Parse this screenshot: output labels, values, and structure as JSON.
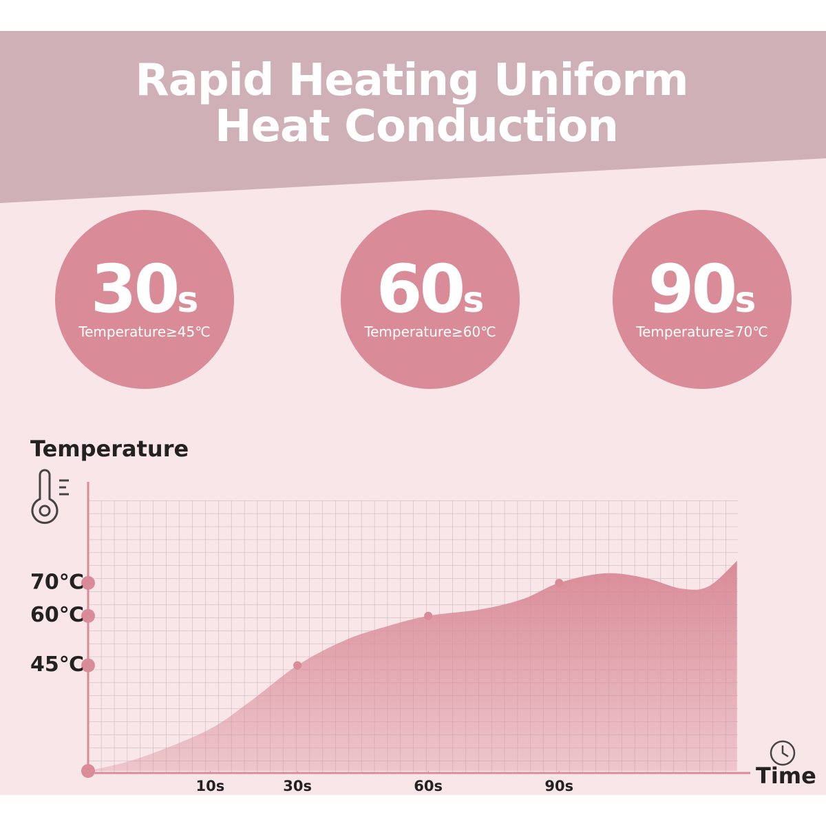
{
  "header": {
    "title": [
      "Rapid Heating Uniform",
      "Heat Conduction"
    ]
  },
  "badges": [
    {
      "number": "30",
      "unit": "s",
      "caption": "Temperature≥45℃"
    },
    {
      "number": "60",
      "unit": "s",
      "caption": "Temperature≥60℃"
    },
    {
      "number": "90",
      "unit": "s",
      "caption": "Temperature≥70℃"
    }
  ],
  "chart_data": {
    "type": "area",
    "ylabel": "Temperature",
    "xlabel": "Time",
    "color": "#d98b97",
    "x": [
      -18,
      -6.5,
      9.2,
      18.7,
      30,
      40.7,
      50.2,
      60,
      72.2,
      81.7,
      90,
      100.6,
      110,
      117.9,
      124.2,
      130.8
    ],
    "values": [
      13,
      16.8,
      25.2,
      33.6,
      45,
      52.5,
      56.7,
      60,
      62,
      65.1,
      70,
      72.9,
      71.4,
      68.3,
      68.9,
      76.7
    ],
    "xlim": [
      -18,
      131
    ],
    "ylim": [
      13,
      95
    ],
    "xticks": [
      {
        "value": 10,
        "label": "10s"
      },
      {
        "value": 30,
        "label": "30s"
      },
      {
        "value": 60,
        "label": "60s"
      },
      {
        "value": 90,
        "label": "90s"
      }
    ],
    "yticks": [
      {
        "value": 45,
        "label": "45℃"
      },
      {
        "value": 60,
        "label": "60℃"
      },
      {
        "value": 70,
        "label": "70℃"
      }
    ]
  }
}
